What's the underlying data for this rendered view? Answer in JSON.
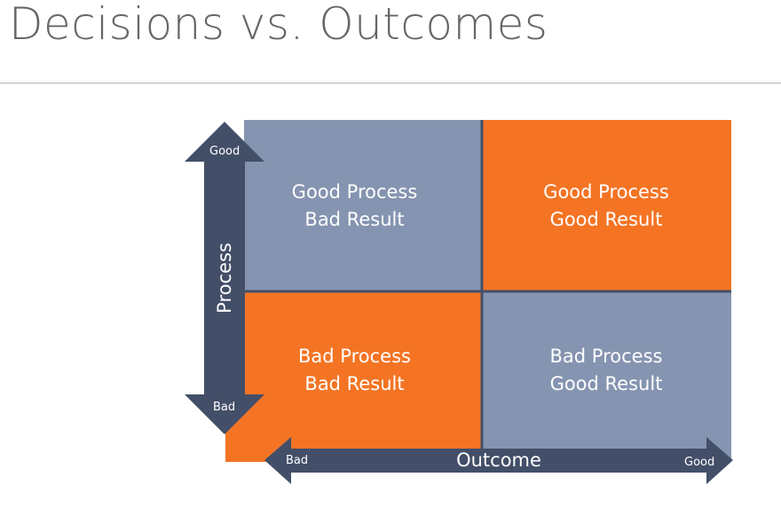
{
  "title": "Decisions vs. Outcomes",
  "quadrants": {
    "top_left": {
      "line1": "Good Process",
      "line2": "Bad Result",
      "color": "#8594b0"
    },
    "top_right": {
      "line1": "Good Process",
      "line2": "Good Result",
      "color": "#f47424"
    },
    "bottom_left": {
      "line1": "Bad Process",
      "line2": "Bad Result",
      "color": "#f47424"
    },
    "bottom_right": {
      "line1": "Bad Process",
      "line2": "Good Result",
      "color": "#8594b0"
    }
  },
  "y_axis": {
    "label": "Process",
    "top": "Good",
    "bottom": "Bad"
  },
  "x_axis": {
    "label": "Outcome",
    "left": "Bad",
    "right": "Good"
  },
  "colors": {
    "axis": "#434f68",
    "divider": "#434f68",
    "title": "#666666"
  }
}
